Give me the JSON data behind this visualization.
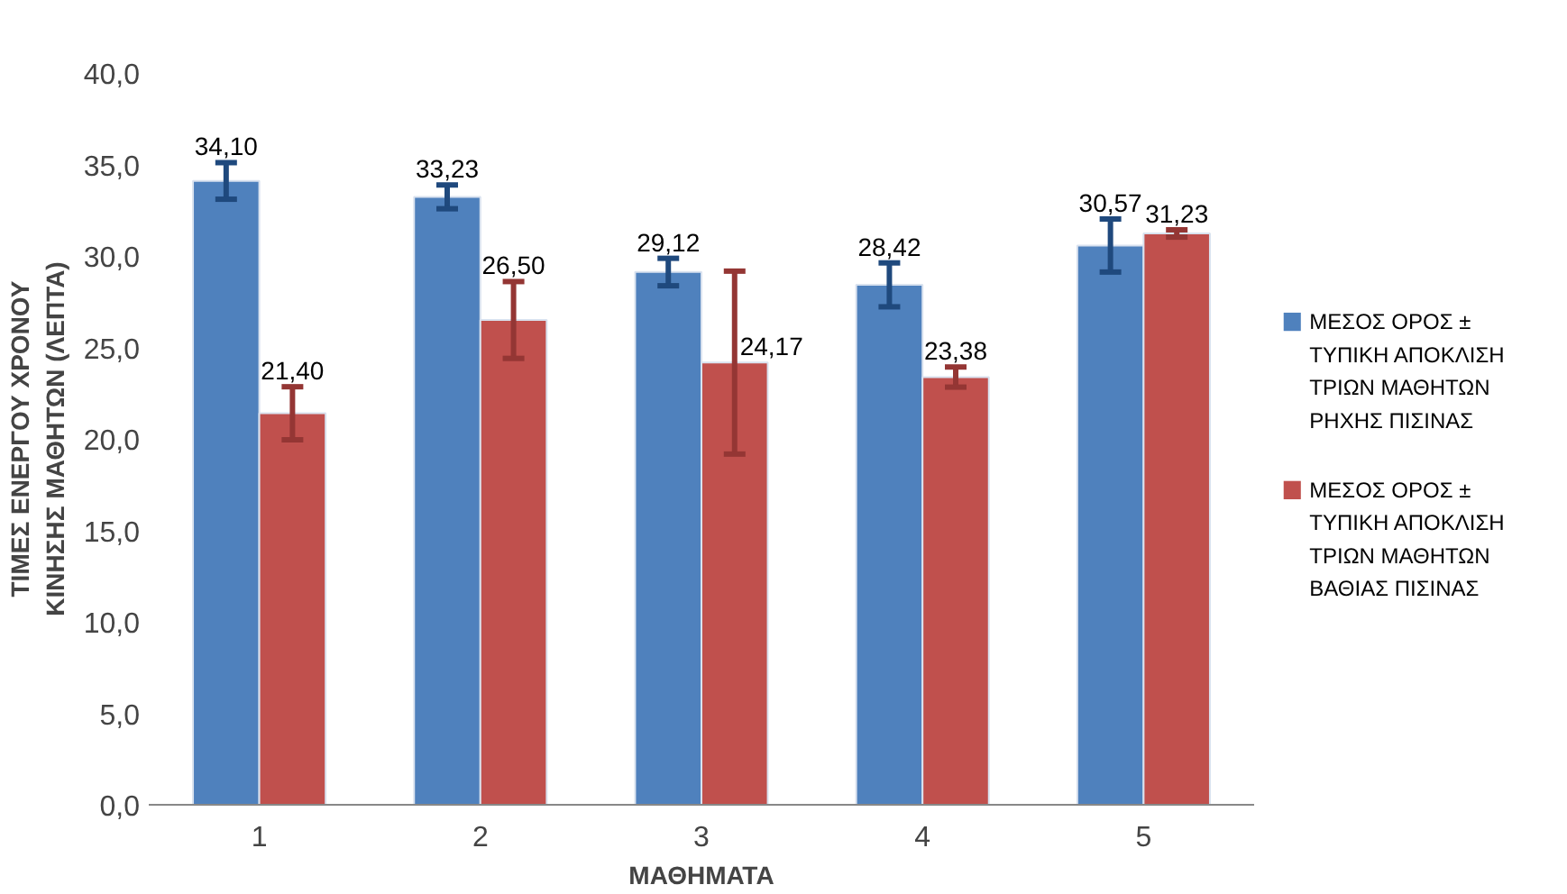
{
  "chart_data": {
    "type": "bar",
    "xlabel": "ΜΑΘΗΜΑΤΑ",
    "ylabel": "ΤΙΜΕΣ ΕΝΕΡΓΟΥ ΧΡΟΝΟΥ ΚΙΝΗΣΗΣ ΜΑΘΗΤΩΝ (ΛΕΠΤΑ)",
    "categories": [
      "1",
      "2",
      "3",
      "4",
      "5"
    ],
    "series": [
      {
        "name": "ΜΕΣΟΣ ΟΡΟΣ ± ΤΥΠΙΚΗ ΑΠΟΚΛΙΣΗ ΤΡΙΩΝ ΜΑΘΗΤΩΝ ΡΗΧΗΣ ΠΙΣΙΝΑΣ",
        "color": "#4f81bd",
        "values": [
          34.1,
          33.23,
          29.12,
          28.42,
          30.57
        ],
        "errors": [
          1.0,
          0.65,
          0.75,
          1.2,
          1.45
        ],
        "value_labels": [
          "34,10",
          "33,23",
          "29,12",
          "28,42",
          "30,57"
        ]
      },
      {
        "name": "ΜΕΣΟΣ ΟΡΟΣ ± ΤΥΠΙΚΗ ΑΠΟΚΛΙΣΗ ΤΡΙΩΝ ΜΑΘΗΤΩΝ ΒΑΘΙΑΣ ΠΙΣΙΝΑΣ",
        "color": "#c0504d",
        "values": [
          21.4,
          26.5,
          24.17,
          23.38,
          31.23
        ],
        "errors": [
          1.45,
          2.1,
          5.0,
          0.55,
          0.2
        ],
        "value_labels": [
          "21,40",
          "26,50",
          "24,17",
          "23,38",
          "31,23"
        ]
      }
    ],
    "ylim": [
      0,
      40
    ],
    "yticks": [
      {
        "value": 0,
        "label": "0,0"
      },
      {
        "value": 5,
        "label": "5,0"
      },
      {
        "value": 10,
        "label": "10,0"
      },
      {
        "value": 15,
        "label": "15,0"
      },
      {
        "value": 20,
        "label": "20,0"
      },
      {
        "value": 25,
        "label": "25,0"
      },
      {
        "value": 30,
        "label": "30,0"
      },
      {
        "value": 35,
        "label": "35,0"
      },
      {
        "value": 40,
        "label": "40,0"
      }
    ],
    "grid": false,
    "legend": "right"
  }
}
